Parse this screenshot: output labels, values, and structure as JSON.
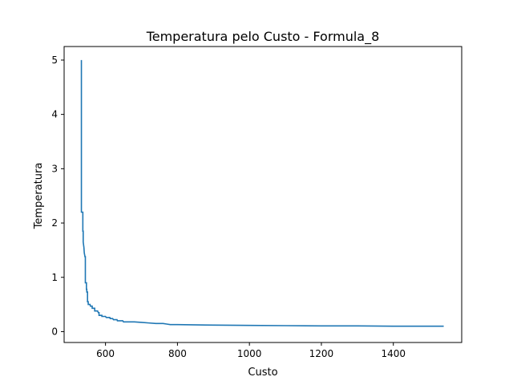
{
  "chart_data": {
    "type": "line",
    "title": "Temperatura pelo Custo - Formula_8",
    "xlabel": "Custo",
    "ylabel": "Temperatura",
    "xlim": [
      485,
      1590
    ],
    "ylim": [
      -0.2,
      5.25
    ],
    "xticks": [
      600,
      800,
      1000,
      1200,
      1400
    ],
    "yticks": [
      0,
      1,
      2,
      3,
      4,
      5
    ],
    "grid": false,
    "series": [
      {
        "color": "#1f77b4",
        "points": [
          [
            533,
            5.0
          ],
          [
            533,
            2.2
          ],
          [
            537,
            2.2
          ],
          [
            537,
            1.85
          ],
          [
            538,
            1.85
          ],
          [
            538,
            1.65
          ],
          [
            540,
            1.55
          ],
          [
            541,
            1.45
          ],
          [
            543,
            1.38
          ],
          [
            544,
            1.38
          ],
          [
            544,
            0.9
          ],
          [
            547,
            0.9
          ],
          [
            547,
            0.78
          ],
          [
            548,
            0.78
          ],
          [
            548,
            0.73
          ],
          [
            550,
            0.73
          ],
          [
            550,
            0.55
          ],
          [
            552,
            0.55
          ],
          [
            552,
            0.5
          ],
          [
            557,
            0.5
          ],
          [
            558,
            0.47
          ],
          [
            563,
            0.47
          ],
          [
            563,
            0.43
          ],
          [
            570,
            0.43
          ],
          [
            570,
            0.38
          ],
          [
            578,
            0.38
          ],
          [
            580,
            0.35
          ],
          [
            582,
            0.35
          ],
          [
            582,
            0.3
          ],
          [
            590,
            0.3
          ],
          [
            590,
            0.28
          ],
          [
            600,
            0.28
          ],
          [
            602,
            0.26
          ],
          [
            612,
            0.26
          ],
          [
            613,
            0.24
          ],
          [
            620,
            0.24
          ],
          [
            622,
            0.22
          ],
          [
            632,
            0.22
          ],
          [
            633,
            0.2
          ],
          [
            648,
            0.2
          ],
          [
            650,
            0.18
          ],
          [
            680,
            0.18
          ],
          [
            700,
            0.17
          ],
          [
            720,
            0.16
          ],
          [
            740,
            0.15
          ],
          [
            760,
            0.15
          ],
          [
            770,
            0.14
          ],
          [
            780,
            0.13
          ],
          [
            800,
            0.13
          ],
          [
            900,
            0.12
          ],
          [
            1000,
            0.115
          ],
          [
            1100,
            0.11
          ],
          [
            1200,
            0.105
          ],
          [
            1300,
            0.105
          ],
          [
            1400,
            0.1
          ],
          [
            1540,
            0.1
          ]
        ]
      }
    ]
  }
}
